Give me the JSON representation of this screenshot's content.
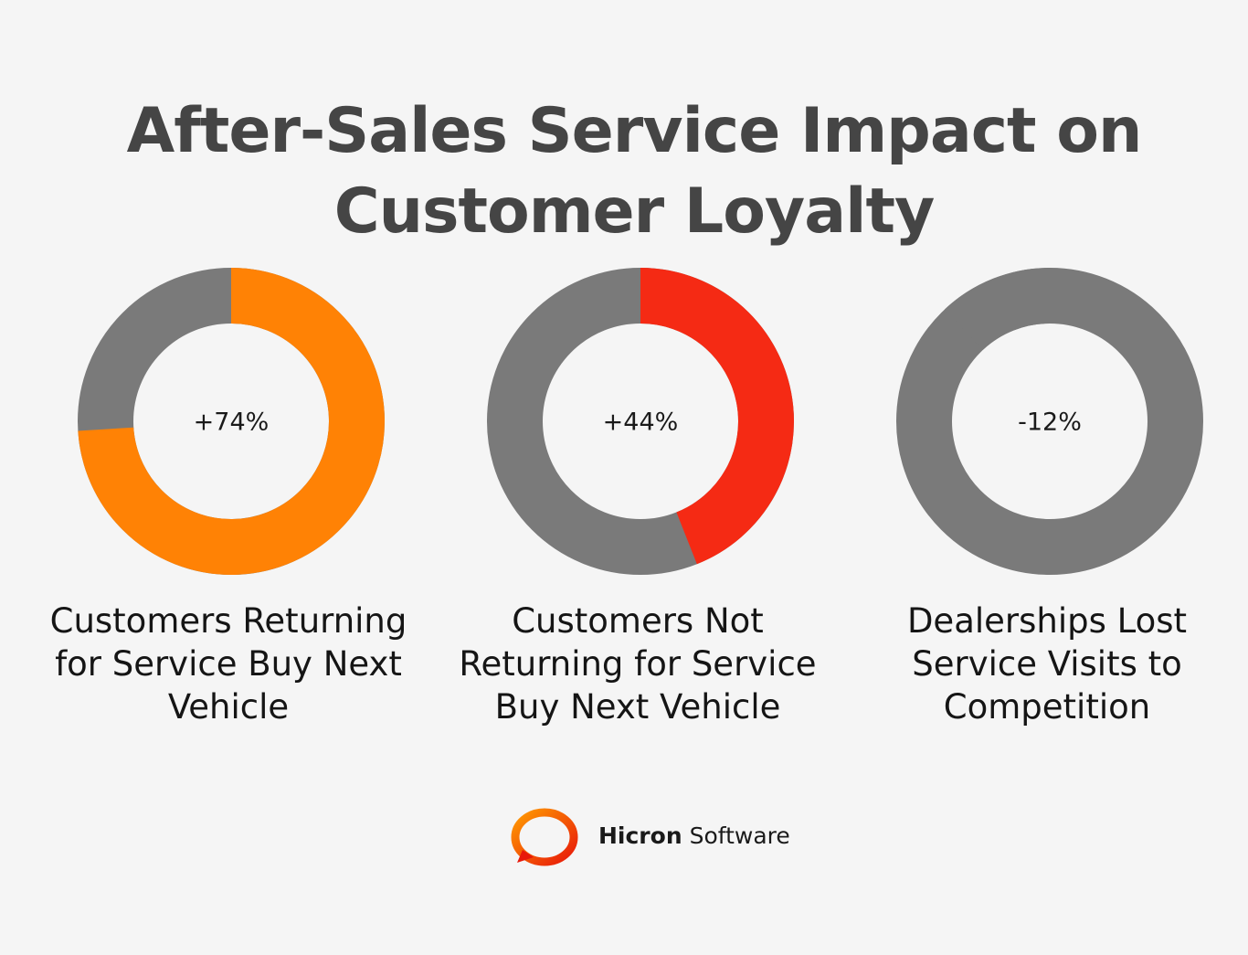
{
  "title": "After-Sales Service Impact on Customer Loyalty",
  "chart_data": [
    {
      "type": "donut",
      "title": "Customers Returning for Service Buy Next Vehicle",
      "values": [
        74
      ],
      "value_labels": [
        "+74%"
      ],
      "color": "#ff8205",
      "track_color": "#7a7a7a"
    },
    {
      "type": "donut",
      "title": "Customers Not Returning for Service Buy Next Vehicle",
      "values": [
        44
      ],
      "value_labels": [
        "+44%"
      ],
      "color": "#f52a14",
      "track_color": "#7a7a7a"
    },
    {
      "type": "donut",
      "title": "Dealerships Lost Service Visits to Competition",
      "values": [
        -12
      ],
      "value_labels": [
        "-12%"
      ],
      "color": "#7a7a7a",
      "track_color": "#7a7a7a"
    }
  ],
  "logo": {
    "name": "Hicron",
    "suffix": "Software"
  }
}
